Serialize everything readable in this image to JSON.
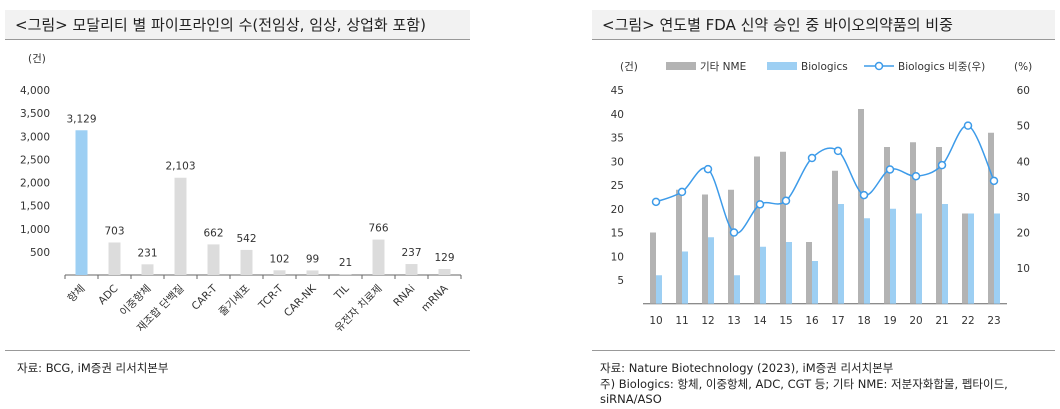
{
  "left": {
    "title": "<그림> 모달리티 별 파이프라인의 수(전임상, 임상, 상업화 포함)",
    "unit": "(건)",
    "source": "자료: BCG, iM증권 리서치본부"
  },
  "right": {
    "title": "<그림> 연도별 FDA 신약 승인 중 바이오의약품의 비중",
    "unit_left": "(건)",
    "unit_right": "(%)",
    "notes": [
      "자료: Nature Biotechnology (2023), iM증권 리서치본부",
      "주) Biologics: 항체, 이중항체, ADC, CGT 등; 기타 NME: 저분자화합물, 펩타이드,",
      "siRNA/ASO"
    ]
  },
  "chart_data": [
    {
      "type": "bar",
      "title": "모달리티 별 파이프라인의 수",
      "ylabel": "(건)",
      "ylim": [
        0,
        4000
      ],
      "yticks": [
        500,
        1000,
        1500,
        2000,
        2500,
        3000,
        3500,
        4000
      ],
      "ytick_labels": [
        "500",
        "1,000",
        "1,500",
        "2,000",
        "2,500",
        "3,000",
        "3,500",
        "4,000"
      ],
      "categories": [
        "항체",
        "ADC",
        "이중항체",
        "재조합 단백질",
        "CAR-T",
        "줄기세포",
        "TCR-T",
        "CAR-NK",
        "TIL",
        "유전자 치료제",
        "RNAi",
        "mRNA"
      ],
      "values": [
        3129,
        703,
        231,
        2103,
        662,
        542,
        102,
        99,
        21,
        766,
        237,
        129
      ],
      "value_labels": [
        "3,129",
        "703",
        "231",
        "2,103",
        "662",
        "542",
        "102",
        "99",
        "21",
        "766",
        "237",
        "129"
      ],
      "colors": {
        "highlight": "#9dcff3",
        "default": "#dcdcdc"
      }
    },
    {
      "type": "bar+line",
      "categories": [
        "10",
        "11",
        "12",
        "13",
        "14",
        "15",
        "16",
        "17",
        "18",
        "19",
        "20",
        "21",
        "22",
        "23"
      ],
      "ylim_left": [
        0,
        45
      ],
      "yticks_left": [
        5,
        10,
        15,
        20,
        25,
        30,
        35,
        40,
        45
      ],
      "ylim_right": [
        0,
        60
      ],
      "yticks_right": [
        10,
        20,
        30,
        40,
        50,
        60
      ],
      "legend": [
        "기타 NME",
        "Biologics",
        "Biologics 비중(우)"
      ],
      "series": [
        {
          "name": "기타 NME",
          "type": "bar",
          "axis": "left",
          "color": "#b3b3b3",
          "values": [
            15,
            24,
            23,
            24,
            31,
            32,
            13,
            28,
            41,
            33,
            34,
            33,
            19,
            36
          ]
        },
        {
          "name": "Biologics",
          "type": "bar",
          "axis": "left",
          "color": "#9dcff3",
          "values": [
            6,
            11,
            14,
            6,
            12,
            13,
            9,
            21,
            18,
            20,
            19,
            21,
            19,
            19
          ]
        },
        {
          "name": "Biologics 비중(우)",
          "type": "line",
          "axis": "right",
          "color": "#3d9be9",
          "values": [
            28.6,
            31.4,
            37.8,
            20.0,
            27.9,
            28.9,
            40.9,
            42.9,
            30.5,
            37.7,
            35.8,
            38.9,
            50.0,
            34.5
          ]
        }
      ]
    }
  ]
}
